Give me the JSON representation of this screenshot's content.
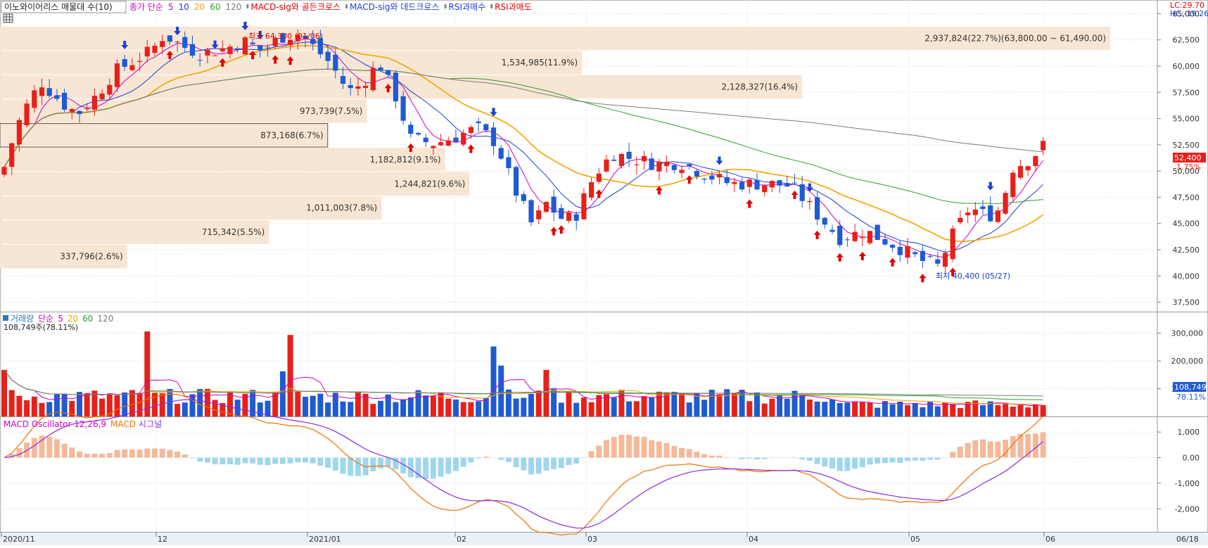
{
  "header": {
    "stock_name": "이노와이어리스 매물대 수(10)",
    "legend_items": [
      {
        "text": "종가 단순",
        "color": "#cc00cc"
      },
      {
        "text": "5",
        "color": "#cc00cc"
      },
      {
        "text": "10",
        "color": "#1a3fd6"
      },
      {
        "text": "20",
        "color": "#f5a300"
      },
      {
        "text": "60",
        "color": "#2aa02a"
      },
      {
        "text": "120",
        "color": "#7a7a7a"
      },
      {
        "text": "MACD-sig와 골든크로스",
        "color": "#e00000"
      },
      {
        "text": "MACD-sig와 데드크로스",
        "color": "#1a3fd6"
      },
      {
        "text": "RSI과매수",
        "color": "#1a3fd6"
      },
      {
        "text": "RSI과매도",
        "color": "#e00000"
      }
    ],
    "lc_label": "LC:29.70",
    "hc_label": "HC:-19.26"
  },
  "colors": {
    "up": "#e8201a",
    "down": "#1f5bd1",
    "volume_band": "#f7e6d3",
    "grid": "#e6e6e6"
  },
  "chart_data": [
    {
      "type": "candlestick",
      "title": "이노와이어리스 매물대 수(10)",
      "y_ticks": [
        "65,000",
        "62,500",
        "60,000",
        "57,500",
        "55,000",
        "52,500",
        "50,000",
        "47,500",
        "45,000",
        "42,500",
        "40,000",
        "37,500"
      ],
      "ylim": [
        36800,
        65900
      ],
      "current_price": "52,400",
      "current_change": "1.75%",
      "annotation_high": "최고 64,300 (01/06)",
      "annotation_low": "최저 40,400 (05/27)",
      "volume_profile": [
        {
          "label": "2,937,824(22.7%)(63,800.00 ~ 61,490.00)",
          "low": 61490,
          "high": 63800,
          "pct": 22.7
        },
        {
          "label": "1,534,985(11.9%)",
          "low": 59180,
          "high": 61490,
          "pct": 11.9
        },
        {
          "label": "2,128,327(16.4%)",
          "low": 56870,
          "high": 59180,
          "pct": 16.4
        },
        {
          "label": "973,739(7.5%)",
          "low": 54560,
          "high": 56870,
          "pct": 7.5
        },
        {
          "label": "873,168(6.7%)",
          "low": 52250,
          "high": 54560,
          "pct": 6.7
        },
        {
          "label": "1,182,812(9.1%)",
          "low": 49940,
          "high": 52250,
          "pct": 9.1
        },
        {
          "label": "1,244,821(9.6%)",
          "low": 47630,
          "high": 49940,
          "pct": 9.6
        },
        {
          "label": "1,011,003(7.8%)",
          "low": 45320,
          "high": 47630,
          "pct": 7.8
        },
        {
          "label": "715,342(5.5%)",
          "low": 43010,
          "high": 45320,
          "pct": 5.5
        },
        {
          "label": "337,796(2.6%)",
          "low": 40700,
          "high": 43010,
          "pct": 2.6
        }
      ],
      "x_labels": [
        "2020/11",
        "12",
        "2021/01",
        "02",
        "03",
        "04",
        "05",
        "06",
        "06/18"
      ],
      "moving_averages": [
        "5",
        "10",
        "20",
        "60",
        "120"
      ],
      "grid": true
    },
    {
      "type": "bar",
      "title": "거래량",
      "legend": [
        "거래량",
        "단순",
        "5",
        "20",
        "60",
        "120"
      ],
      "last_label": "108,749주(78.11%)",
      "last_value": "108,749",
      "last_pct": "78.11%",
      "y_ticks": [
        "300,000",
        "200,000",
        "100,000"
      ],
      "ylim": [
        0,
        370000
      ],
      "grid": true
    },
    {
      "type": "line",
      "title": "MACD Oscillator 12,26,9",
      "legend": [
        "MACD Oscillator 12,26,9",
        "MACD",
        "시그널"
      ],
      "y_ticks": [
        "1,000",
        "0.00",
        "-1,000",
        "-2,000"
      ],
      "ylim": [
        -2900,
        1500
      ],
      "grid": true
    }
  ]
}
